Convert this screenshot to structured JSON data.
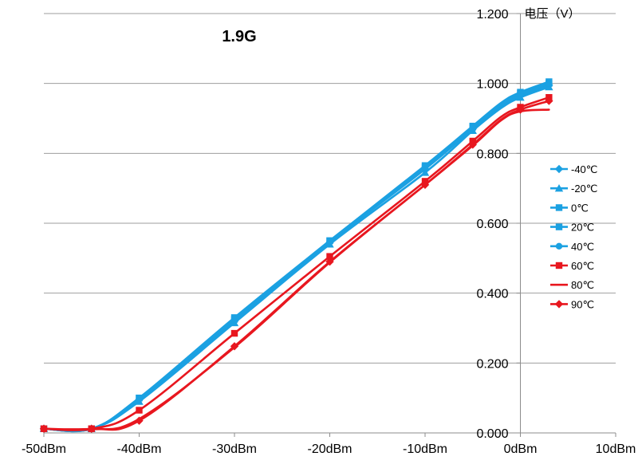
{
  "chart_data": {
    "type": "line",
    "title": "1.9G",
    "ylabel": "电压（V）",
    "xlabel": "",
    "xlim": [
      -50,
      10
    ],
    "ylim": [
      0,
      1.2
    ],
    "xticks": [
      {
        "value": -50,
        "label": "-50dBm"
      },
      {
        "value": -40,
        "label": "-40dBm"
      },
      {
        "value": -30,
        "label": "-30dBm"
      },
      {
        "value": -20,
        "label": "-20dBm"
      },
      {
        "value": -10,
        "label": "-10dBm"
      },
      {
        "value": 0,
        "label": "0dBm"
      },
      {
        "value": 10,
        "label": "10dBm"
      }
    ],
    "yticks": [
      {
        "value": 0,
        "label": "0.000"
      },
      {
        "value": 0.2,
        "label": "0.200"
      },
      {
        "value": 0.4,
        "label": "0.400"
      },
      {
        "value": 0.6,
        "label": "0.600"
      },
      {
        "value": 0.8,
        "label": "0.800"
      },
      {
        "value": 1.0,
        "label": "1.000"
      },
      {
        "value": 1.2,
        "label": "1.200"
      }
    ],
    "grid": true,
    "legend_position": "right",
    "x": [
      -50,
      -45,
      -40,
      -30,
      -20,
      -10,
      -5,
      -2,
      0,
      3
    ],
    "series": [
      {
        "name": "-40℃",
        "color": "#1ba1e2",
        "marker": "diamond",
        "values": [
          0.012,
          0.012,
          0.095,
          0.32,
          0.545,
          0.755,
          0.87,
          0.935,
          0.965,
          0.995
        ]
      },
      {
        "name": "-20℃",
        "color": "#1ba1e2",
        "marker": "triangle",
        "values": [
          0.012,
          0.012,
          0.09,
          0.315,
          0.54,
          0.745,
          0.865,
          0.93,
          0.96,
          0.99
        ]
      },
      {
        "name": "0℃",
        "color": "#1ba1e2",
        "marker": "square",
        "values": [
          0.012,
          0.012,
          0.1,
          0.325,
          0.55,
          0.76,
          0.875,
          0.94,
          0.972,
          1.0
        ]
      },
      {
        "name": "20℃",
        "color": "#1ba1e2",
        "marker": "square",
        "values": [
          0.012,
          0.012,
          0.1,
          0.33,
          0.55,
          0.765,
          0.878,
          0.945,
          0.975,
          1.005
        ]
      },
      {
        "name": "40℃",
        "color": "#1ba1e2",
        "marker": "circle",
        "values": [
          0.012,
          0.012,
          0.097,
          0.328,
          0.548,
          0.76,
          0.872,
          0.94,
          0.97,
          1.0
        ]
      },
      {
        "name": "60℃",
        "color": "#e8171f",
        "marker": "square",
        "values": [
          0.012,
          0.012,
          0.065,
          0.285,
          0.505,
          0.72,
          0.835,
          0.905,
          0.932,
          0.96
        ]
      },
      {
        "name": "80℃",
        "color": "#e8171f",
        "marker": "none",
        "values": [
          0.012,
          0.01,
          0.04,
          0.245,
          0.488,
          0.71,
          0.822,
          0.895,
          0.92,
          0.925
        ]
      },
      {
        "name": "90℃",
        "color": "#e8171f",
        "marker": "diamond",
        "values": [
          0.012,
          0.012,
          0.035,
          0.248,
          0.49,
          0.71,
          0.825,
          0.897,
          0.925,
          0.95
        ]
      }
    ]
  }
}
